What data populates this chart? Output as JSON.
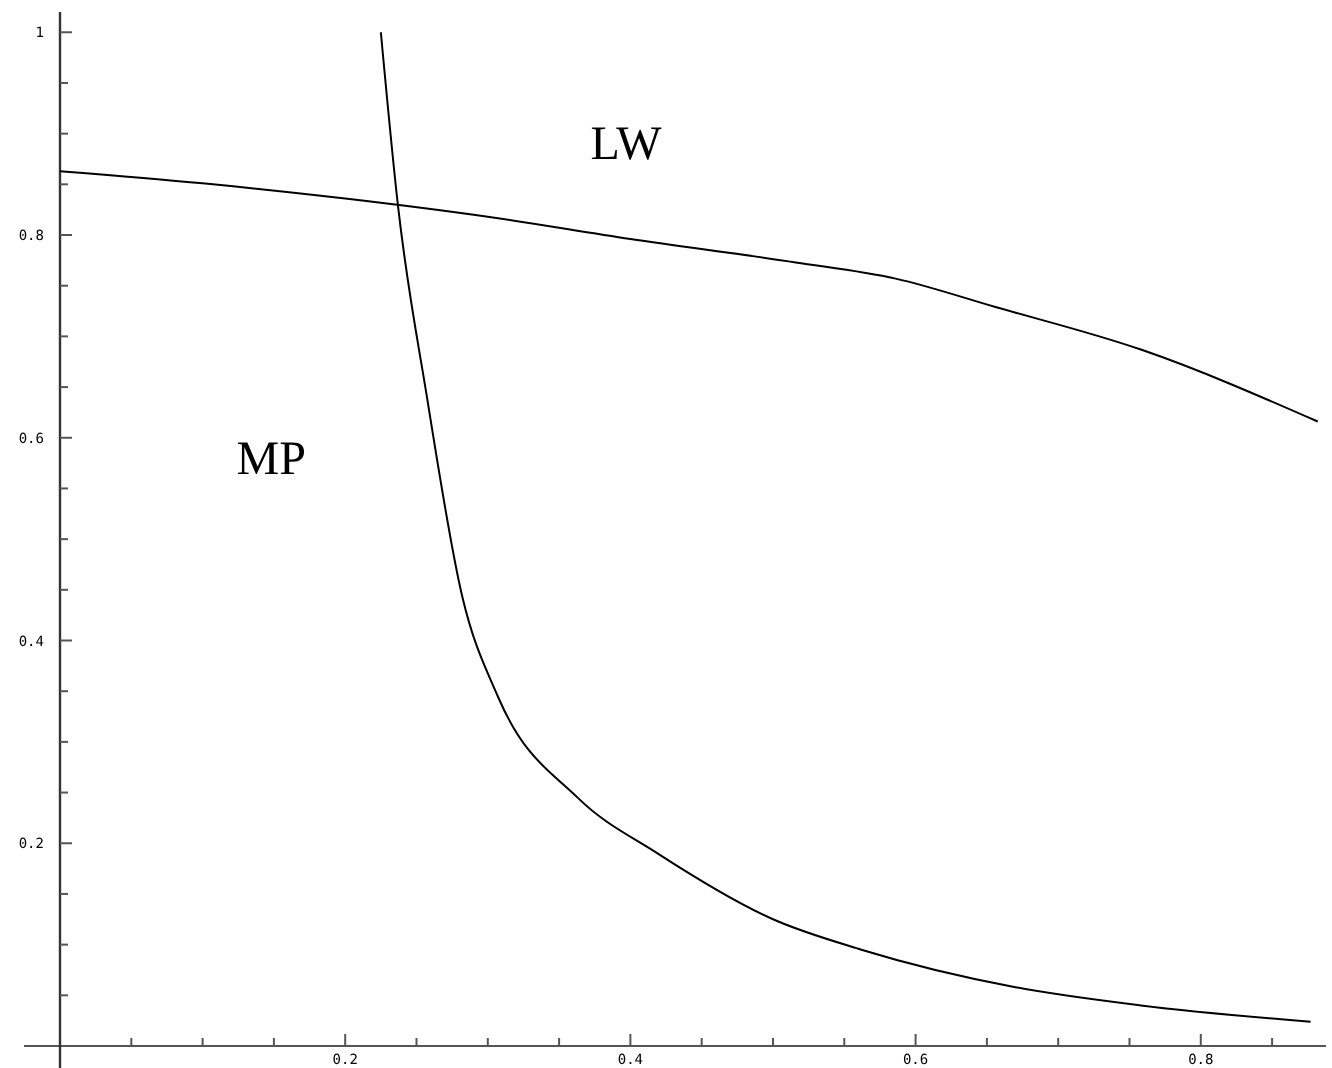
{
  "chart_data": {
    "type": "line",
    "xlim": [
      0,
      0.885
    ],
    "ylim": [
      0,
      1.02
    ],
    "xticks": [
      {
        "value": 0.05,
        "label": null
      },
      {
        "value": 0.1,
        "label": null
      },
      {
        "value": 0.15,
        "label": null
      },
      0.2,
      {
        "value": 0.25,
        "label": null
      },
      {
        "value": 0.3,
        "label": null
      },
      {
        "value": 0.35,
        "label": null
      },
      0.4,
      {
        "value": 0.45,
        "label": null
      },
      {
        "value": 0.5,
        "label": null
      },
      {
        "value": 0.55,
        "label": null
      },
      0.6,
      {
        "value": 0.65,
        "label": null
      },
      {
        "value": 0.7,
        "label": null
      },
      {
        "value": 0.75,
        "label": null
      },
      0.8,
      {
        "value": 0.85,
        "label": null
      }
    ],
    "yticks": [
      {
        "value": 0.05,
        "label": null
      },
      {
        "value": 0.1,
        "label": null
      },
      {
        "value": 0.15,
        "label": null
      },
      0.2,
      {
        "value": 0.25,
        "label": null
      },
      {
        "value": 0.3,
        "label": null
      },
      {
        "value": 0.35,
        "label": null
      },
      0.4,
      {
        "value": 0.45,
        "label": null
      },
      {
        "value": 0.5,
        "label": null
      },
      {
        "value": 0.55,
        "label": null
      },
      0.6,
      {
        "value": 0.65,
        "label": null
      },
      {
        "value": 0.7,
        "label": null
      },
      {
        "value": 0.75,
        "label": null
      },
      0.8,
      {
        "value": 0.85,
        "label": null
      },
      {
        "value": 0.9,
        "label": null
      },
      {
        "value": 0.95,
        "label": null
      },
      1
    ],
    "grid": false,
    "marker": "none",
    "line_style": "solid",
    "series": [
      {
        "name": "LW",
        "color": "#000000",
        "x": [
          0,
          0.1,
          0.2,
          0.3,
          0.4,
          0.516,
          0.586,
          0.656,
          0.758,
          0.882
        ],
        "values": [
          0.863,
          0.851,
          0.836,
          0.818,
          0.796,
          0.773,
          0.757,
          0.729,
          0.687,
          0.616
        ]
      },
      {
        "name": "MP",
        "color": "#000000",
        "x": [
          0.225,
          0.237,
          0.257,
          0.282,
          0.307,
          0.363,
          0.419,
          0.5,
          0.562,
          0.67,
          0.758,
          0.877
        ],
        "values": [
          1.0,
          0.829,
          0.643,
          0.444,
          0.345,
          0.245,
          0.19,
          0.125,
          0.095,
          0.058,
          0.04,
          0.024
        ]
      }
    ]
  }
}
